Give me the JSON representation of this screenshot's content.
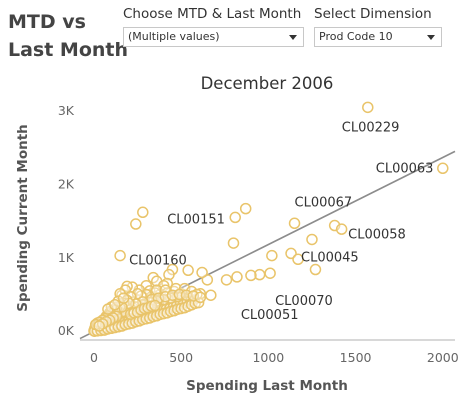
{
  "header": {
    "title_line1": "MTD vs",
    "title_line2": "Last Month"
  },
  "filters": [
    {
      "label": "Choose MTD & Last Month",
      "value": "(Multiple values)"
    },
    {
      "label": "Select Dimension",
      "value": "Prod Code 10"
    }
  ],
  "colors": {
    "points": "#e9c46a",
    "trend": "#8c8c8c",
    "axis": "#b0b0b0"
  },
  "chart_data": {
    "type": "scatter",
    "title": "December 2006",
    "xlabel": "Spending Last Month",
    "ylabel": "Spending Current Month",
    "xlim": [
      -80,
      2070
    ],
    "ylim": [
      -120,
      3150
    ],
    "x_ticks": [
      0,
      500,
      1000,
      1500,
      2000
    ],
    "y_ticks": [
      0,
      1000,
      2000,
      3000
    ],
    "x_tick_labels": [
      "0",
      "500",
      "1000",
      "1500",
      "2000"
    ],
    "y_tick_labels": [
      "0K",
      "1K",
      "2K",
      "3K"
    ],
    "trend_line": {
      "x": [
        -80,
        2070
      ],
      "y": [
        -100,
        2450
      ]
    },
    "labeled_points": [
      {
        "label": "CL00229",
        "x": 1570,
        "y": 3050
      },
      {
        "label": "CL00063",
        "x": 2000,
        "y": 2220
      },
      {
        "label": "CL00151",
        "x": 810,
        "y": 1550
      },
      {
        "label": "CL00067",
        "x": 1150,
        "y": 1470
      },
      {
        "label": "CL00058",
        "x": 1400,
        "y": 1400
      },
      {
        "label": "CL00160",
        "x": 150,
        "y": 1030
      },
      {
        "label": "CL00045",
        "x": 1130,
        "y": 1060
      },
      {
        "label": "CL00070",
        "x": 1010,
        "y": 790
      },
      {
        "label": "CL00051",
        "x": 670,
        "y": 490
      }
    ],
    "points": [
      [
        1570,
        3050
      ],
      [
        2000,
        2220
      ],
      [
        810,
        1550
      ],
      [
        870,
        1670
      ],
      [
        280,
        1620
      ],
      [
        240,
        1460
      ],
      [
        1150,
        1470
      ],
      [
        1380,
        1440
      ],
      [
        1420,
        1390
      ],
      [
        1250,
        1250
      ],
      [
        800,
        1200
      ],
      [
        150,
        1030
      ],
      [
        1130,
        1060
      ],
      [
        1020,
        1030
      ],
      [
        1170,
        980
      ],
      [
        1270,
        840
      ],
      [
        1010,
        790
      ],
      [
        950,
        770
      ],
      [
        900,
        760
      ],
      [
        820,
        740
      ],
      [
        760,
        700
      ],
      [
        650,
        700
      ],
      [
        620,
        800
      ],
      [
        540,
        830
      ],
      [
        450,
        840
      ],
      [
        430,
        770
      ],
      [
        340,
        730
      ],
      [
        360,
        680
      ],
      [
        420,
        650
      ],
      [
        300,
        620
      ],
      [
        320,
        550
      ],
      [
        260,
        560
      ],
      [
        220,
        600
      ],
      [
        400,
        620
      ],
      [
        190,
        610
      ],
      [
        160,
        490
      ],
      [
        670,
        490
      ],
      [
        610,
        510
      ],
      [
        560,
        470
      ],
      [
        510,
        460
      ],
      [
        470,
        420
      ],
      [
        430,
        400
      ],
      [
        390,
        380
      ],
      [
        350,
        370
      ],
      [
        310,
        330
      ],
      [
        280,
        300
      ],
      [
        250,
        280
      ],
      [
        220,
        260
      ],
      [
        200,
        240
      ],
      [
        180,
        210
      ],
      [
        160,
        190
      ],
      [
        140,
        170
      ],
      [
        120,
        160
      ],
      [
        100,
        140
      ],
      [
        80,
        120
      ],
      [
        60,
        100
      ],
      [
        40,
        80
      ],
      [
        20,
        60
      ],
      [
        10,
        30
      ],
      [
        5,
        10
      ],
      [
        30,
        20
      ],
      [
        50,
        40
      ],
      [
        70,
        60
      ],
      [
        90,
        70
      ],
      [
        110,
        90
      ],
      [
        130,
        110
      ],
      [
        150,
        120
      ],
      [
        170,
        140
      ],
      [
        190,
        150
      ],
      [
        210,
        170
      ],
      [
        230,
        190
      ],
      [
        250,
        210
      ],
      [
        270,
        230
      ],
      [
        290,
        240
      ],
      [
        310,
        260
      ],
      [
        330,
        280
      ],
      [
        350,
        300
      ],
      [
        370,
        320
      ],
      [
        390,
        340
      ],
      [
        410,
        350
      ],
      [
        440,
        360
      ],
      [
        460,
        380
      ],
      [
        480,
        400
      ],
      [
        500,
        420
      ],
      [
        520,
        440
      ],
      [
        540,
        450
      ],
      [
        120,
        300
      ],
      [
        100,
        280
      ],
      [
        130,
        330
      ],
      [
        90,
        250
      ],
      [
        70,
        200
      ],
      [
        60,
        160
      ],
      [
        40,
        130
      ],
      [
        20,
        110
      ],
      [
        15,
        60
      ],
      [
        25,
        40
      ],
      [
        45,
        55
      ],
      [
        65,
        75
      ],
      [
        85,
        95
      ],
      [
        105,
        110
      ],
      [
        125,
        130
      ],
      [
        145,
        150
      ],
      [
        165,
        170
      ],
      [
        185,
        180
      ],
      [
        205,
        200
      ],
      [
        225,
        220
      ],
      [
        245,
        230
      ],
      [
        265,
        250
      ],
      [
        285,
        270
      ],
      [
        305,
        290
      ],
      [
        325,
        300
      ],
      [
        345,
        330
      ],
      [
        365,
        350
      ],
      [
        385,
        370
      ],
      [
        405,
        380
      ],
      [
        425,
        390
      ],
      [
        445,
        410
      ],
      [
        200,
        350
      ],
      [
        180,
        320
      ],
      [
        230,
        400
      ],
      [
        260,
        420
      ],
      [
        290,
        450
      ],
      [
        330,
        470
      ],
      [
        380,
        500
      ],
      [
        420,
        520
      ],
      [
        460,
        540
      ],
      [
        500,
        510
      ],
      [
        350,
        520
      ],
      [
        300,
        500
      ],
      [
        270,
        480
      ],
      [
        140,
        250
      ],
      [
        160,
        260
      ],
      [
        110,
        210
      ],
      [
        80,
        170
      ],
      [
        55,
        140
      ],
      [
        35,
        90
      ],
      [
        10,
        80
      ],
      [
        5,
        40
      ],
      [
        15,
        15
      ],
      [
        35,
        25
      ],
      [
        55,
        30
      ],
      [
        75,
        50
      ],
      [
        95,
        55
      ],
      [
        115,
        75
      ],
      [
        135,
        95
      ],
      [
        155,
        100
      ],
      [
        175,
        120
      ],
      [
        195,
        130
      ],
      [
        215,
        150
      ],
      [
        235,
        160
      ],
      [
        255,
        180
      ],
      [
        275,
        200
      ],
      [
        295,
        210
      ],
      [
        315,
        220
      ],
      [
        335,
        240
      ],
      [
        355,
        260
      ],
      [
        375,
        270
      ],
      [
        395,
        290
      ],
      [
        415,
        300
      ],
      [
        435,
        310
      ],
      [
        455,
        330
      ],
      [
        475,
        350
      ],
      [
        495,
        370
      ],
      [
        515,
        390
      ],
      [
        535,
        400
      ],
      [
        555,
        410
      ],
      [
        575,
        430
      ],
      [
        480,
        470
      ],
      [
        440,
        450
      ],
      [
        400,
        430
      ],
      [
        360,
        410
      ],
      [
        320,
        390
      ],
      [
        280,
        360
      ],
      [
        240,
        330
      ],
      [
        210,
        300
      ],
      [
        170,
        270
      ],
      [
        130,
        230
      ],
      [
        95,
        190
      ],
      [
        65,
        150
      ],
      [
        45,
        110
      ],
      [
        25,
        80
      ],
      [
        12,
        50
      ],
      [
        8,
        20
      ],
      [
        0,
        5
      ],
      [
        3,
        0
      ],
      [
        20,
        5
      ],
      [
        40,
        10
      ],
      [
        60,
        15
      ],
      [
        80,
        30
      ],
      [
        100,
        40
      ],
      [
        120,
        50
      ],
      [
        140,
        60
      ],
      [
        160,
        70
      ],
      [
        180,
        90
      ],
      [
        200,
        100
      ],
      [
        220,
        110
      ],
      [
        240,
        130
      ],
      [
        260,
        140
      ],
      [
        280,
        160
      ],
      [
        300,
        170
      ],
      [
        320,
        180
      ],
      [
        340,
        200
      ],
      [
        360,
        210
      ],
      [
        380,
        230
      ],
      [
        400,
        240
      ],
      [
        420,
        250
      ],
      [
        440,
        270
      ],
      [
        460,
        280
      ],
      [
        480,
        300
      ],
      [
        500,
        310
      ],
      [
        520,
        320
      ],
      [
        540,
        340
      ],
      [
        560,
        360
      ],
      [
        580,
        380
      ],
      [
        600,
        390
      ],
      [
        180,
        560
      ],
      [
        150,
        510
      ],
      [
        360,
        560
      ],
      [
        410,
        560
      ],
      [
        470,
        580
      ],
      [
        520,
        580
      ],
      [
        560,
        540
      ],
      [
        590,
        500
      ],
      [
        250,
        510
      ],
      [
        210,
        470
      ],
      [
        190,
        420
      ],
      [
        170,
        380
      ],
      [
        150,
        340
      ],
      [
        130,
        290
      ],
      [
        110,
        250
      ],
      [
        90,
        220
      ],
      [
        70,
        180
      ],
      [
        50,
        150
      ],
      [
        30,
        120
      ],
      [
        10,
        90
      ],
      [
        330,
        430
      ],
      [
        370,
        450
      ],
      [
        410,
        470
      ],
      [
        450,
        490
      ],
      [
        490,
        500
      ],
      [
        530,
        490
      ],
      [
        570,
        480
      ],
      [
        610,
        460
      ],
      [
        280,
        400
      ],
      [
        240,
        370
      ],
      [
        200,
        380
      ],
      [
        160,
        330
      ],
      [
        120,
        280
      ],
      [
        100,
        330
      ],
      [
        80,
        300
      ],
      [
        140,
        410
      ],
      [
        170,
        450
      ],
      [
        120,
        360
      ],
      [
        130,
        200
      ],
      [
        110,
        180
      ],
      [
        90,
        150
      ],
      [
        70,
        130
      ],
      [
        50,
        100
      ],
      [
        30,
        70
      ],
      [
        210,
        230
      ],
      [
        230,
        250
      ],
      [
        250,
        260
      ],
      [
        270,
        290
      ],
      [
        290,
        310
      ],
      [
        310,
        320
      ],
      [
        330,
        340
      ],
      [
        350,
        350
      ]
    ]
  }
}
